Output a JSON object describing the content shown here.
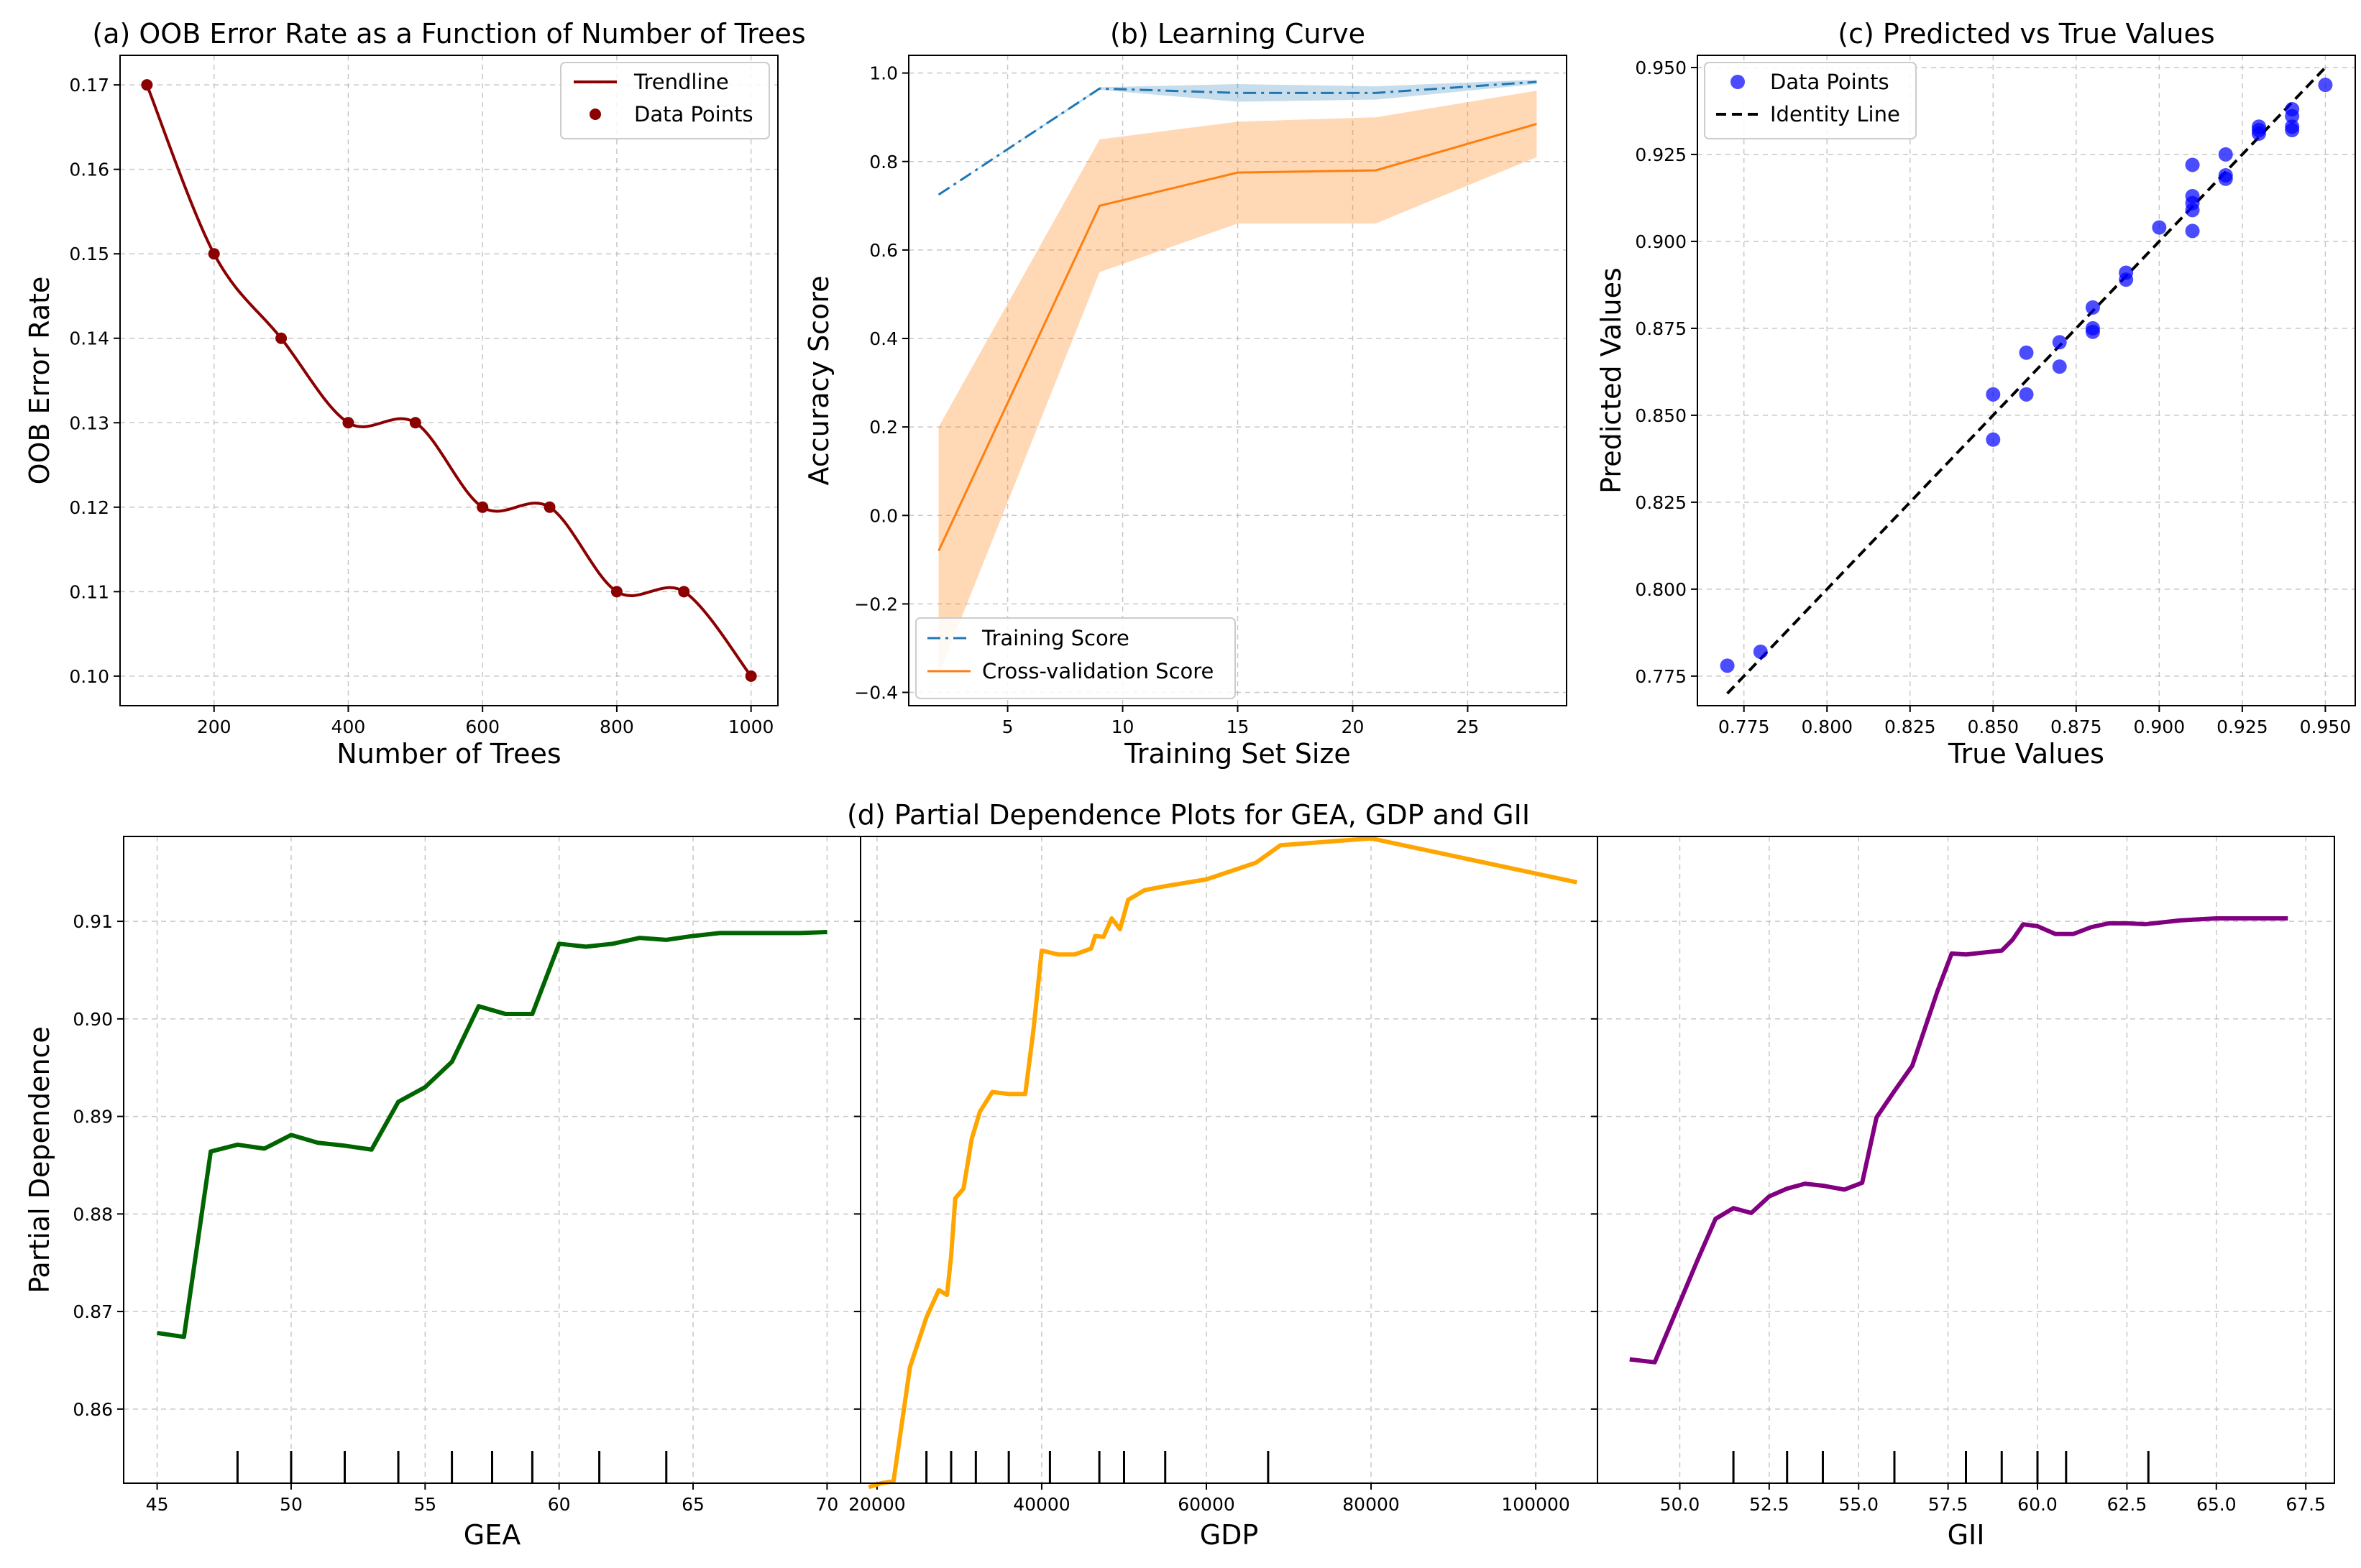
{
  "chart_data": [
    {
      "type": "line",
      "title": "(a) OOB Error Rate as a Function of Number of Trees",
      "xlabel": "Number of Trees",
      "ylabel": "OOB Error Rate",
      "xlim": [
        60,
        1040
      ],
      "ylim": [
        0.0965,
        0.1735
      ],
      "xticks": [
        200,
        400,
        600,
        800,
        1000
      ],
      "xtick_labels": [
        "200",
        "400",
        "600",
        "800",
        "1000"
      ],
      "yticks": [
        0.1,
        0.11,
        0.12,
        0.13,
        0.14,
        0.15,
        0.16,
        0.17
      ],
      "ytick_labels": [
        "0.10",
        "0.11",
        "0.12",
        "0.13",
        "0.14",
        "0.15",
        "0.16",
        "0.17"
      ],
      "grid": true,
      "legend_position": "top-right",
      "colors": {
        "line": "#8b0000",
        "points": "#8b0000"
      },
      "series": [
        {
          "name": "Trendline",
          "style": "smooth-line"
        },
        {
          "name": "Data Points",
          "style": "scatter"
        }
      ],
      "x": [
        100,
        200,
        300,
        400,
        500,
        600,
        700,
        800,
        900,
        1000
      ],
      "values": [
        0.17,
        0.15,
        0.14,
        0.13,
        0.13,
        0.12,
        0.12,
        0.11,
        0.11,
        0.1
      ]
    },
    {
      "type": "line",
      "title": "(b) Learning Curve",
      "xlabel": "Training Set Size",
      "ylabel": "Accuracy Score",
      "xlim": [
        0.7,
        29.3
      ],
      "ylim": [
        -0.43,
        1.04
      ],
      "xticks": [
        5,
        10,
        15,
        20,
        25
      ],
      "xtick_labels": [
        "5",
        "10",
        "15",
        "20",
        "25"
      ],
      "yticks": [
        -0.4,
        -0.2,
        0.0,
        0.2,
        0.4,
        0.6,
        0.8,
        1.0
      ],
      "ytick_labels": [
        "−0.4",
        "−0.2",
        "0.0",
        "0.2",
        "0.4",
        "0.6",
        "0.8",
        "1.0"
      ],
      "grid": true,
      "legend_position": "bottom-left",
      "x": [
        2,
        9,
        15,
        21,
        28
      ],
      "series": [
        {
          "name": "Training Score",
          "color": "#1f77b4",
          "dash": "dash-dot",
          "values": [
            0.725,
            0.965,
            0.955,
            0.955,
            0.98
          ],
          "upper": [
            0.725,
            0.968,
            0.975,
            0.97,
            0.985
          ],
          "lower": [
            0.725,
            0.962,
            0.935,
            0.94,
            0.975
          ]
        },
        {
          "name": "Cross-validation Score",
          "color": "#ff7f0e",
          "dash": "solid",
          "values": [
            -0.08,
            0.7,
            0.775,
            0.78,
            0.885
          ],
          "upper": [
            0.2,
            0.85,
            0.89,
            0.9,
            0.96
          ],
          "lower": [
            -0.36,
            0.55,
            0.66,
            0.66,
            0.81
          ]
        }
      ]
    },
    {
      "type": "scatter",
      "title": "(c) Predicted vs True Values",
      "xlabel": "True Values",
      "ylabel": "Predicted Values",
      "xlim": [
        0.761,
        0.959
      ],
      "ylim": [
        0.7665,
        0.9535
      ],
      "xticks": [
        0.775,
        0.8,
        0.825,
        0.85,
        0.875,
        0.9,
        0.925,
        0.95
      ],
      "xtick_labels": [
        "0.775",
        "0.800",
        "0.825",
        "0.850",
        "0.875",
        "0.900",
        "0.925",
        "0.950"
      ],
      "yticks": [
        0.775,
        0.8,
        0.825,
        0.85,
        0.875,
        0.9,
        0.925,
        0.95
      ],
      "ytick_labels": [
        "0.775",
        "0.800",
        "0.825",
        "0.850",
        "0.875",
        "0.900",
        "0.925",
        "0.950"
      ],
      "grid": true,
      "legend_position": "top-left",
      "series": [
        {
          "name": "Data Points",
          "color": "#0000ff"
        },
        {
          "name": "Identity Line",
          "color": "#000000",
          "dash": "dashed"
        }
      ],
      "points": [
        [
          0.77,
          0.778
        ],
        [
          0.78,
          0.782
        ],
        [
          0.85,
          0.843
        ],
        [
          0.85,
          0.856
        ],
        [
          0.86,
          0.856
        ],
        [
          0.86,
          0.868
        ],
        [
          0.87,
          0.864
        ],
        [
          0.87,
          0.871
        ],
        [
          0.88,
          0.874
        ],
        [
          0.88,
          0.875
        ],
        [
          0.88,
          0.881
        ],
        [
          0.89,
          0.889
        ],
        [
          0.89,
          0.891
        ],
        [
          0.9,
          0.904
        ],
        [
          0.91,
          0.903
        ],
        [
          0.91,
          0.909
        ],
        [
          0.91,
          0.911
        ],
        [
          0.91,
          0.913
        ],
        [
          0.91,
          0.922
        ],
        [
          0.92,
          0.918
        ],
        [
          0.92,
          0.919
        ],
        [
          0.92,
          0.925
        ],
        [
          0.93,
          0.931
        ],
        [
          0.93,
          0.932
        ],
        [
          0.93,
          0.933
        ],
        [
          0.94,
          0.932
        ],
        [
          0.94,
          0.933
        ],
        [
          0.94,
          0.936
        ],
        [
          0.94,
          0.938
        ],
        [
          0.95,
          0.945
        ]
      ],
      "identity": [
        [
          0.77,
          0.77
        ],
        [
          0.95,
          0.95
        ]
      ]
    },
    {
      "type": "line",
      "title": "(d) Partial Dependence Plots for GEA, GDP and GII",
      "ylabel": "Partial Dependence",
      "ylim": [
        0.8524,
        0.9187
      ],
      "yticks": [
        0.86,
        0.87,
        0.88,
        0.89,
        0.9,
        0.91
      ],
      "ytick_labels": [
        "0.86",
        "0.87",
        "0.88",
        "0.89",
        "0.90",
        "0.91"
      ],
      "grid": true,
      "subplots": [
        {
          "xlabel": "GEA",
          "color": "#006400",
          "xlim": [
            43.75,
            71.25
          ],
          "xticks": [
            45,
            50,
            55,
            60,
            65,
            70
          ],
          "xtick_labels": [
            "45",
            "50",
            "55",
            "60",
            "65",
            "70"
          ],
          "x": [
            45,
            46,
            47,
            48,
            49,
            50,
            51,
            52,
            53,
            54,
            55,
            56,
            57,
            58,
            59,
            60,
            61,
            62,
            63,
            64,
            65,
            66,
            67,
            68,
            69,
            70
          ],
          "values": [
            0.8678,
            0.8674,
            0.8864,
            0.8871,
            0.8867,
            0.8881,
            0.8873,
            0.887,
            0.8866,
            0.8915,
            0.893,
            0.8956,
            0.9013,
            0.9005,
            0.9005,
            0.9077,
            0.9074,
            0.9077,
            0.9083,
            0.9081,
            0.9085,
            0.9088,
            0.9088,
            0.9088,
            0.9088,
            0.9089
          ],
          "deciles": [
            48,
            50,
            52,
            54,
            56,
            57.5,
            59,
            61.5,
            64
          ]
        },
        {
          "xlabel": "GDP",
          "color": "#ffa500",
          "xlim": [
            18000,
            107500
          ],
          "xticks": [
            20000,
            40000,
            60000,
            80000,
            100000
          ],
          "xtick_labels": [
            "20000",
            "40000",
            "60000",
            "80000",
            "100000"
          ],
          "x": [
            19000,
            20500,
            22000,
            24000,
            26000,
            27500,
            28500,
            29000,
            29500,
            30500,
            31500,
            32500,
            34000,
            36000,
            38000,
            39000,
            40000,
            42000,
            44000,
            46000,
            46500,
            47500,
            48500,
            49500,
            50500,
            52500,
            55000,
            60000,
            66000,
            69000,
            80000,
            105000
          ],
          "values": [
            0.852,
            0.8524,
            0.8526,
            0.8643,
            0.8694,
            0.8722,
            0.8717,
            0.8757,
            0.8816,
            0.8826,
            0.8877,
            0.8905,
            0.8925,
            0.8923,
            0.8923,
            0.8989,
            0.907,
            0.9066,
            0.9066,
            0.9072,
            0.9085,
            0.9084,
            0.9103,
            0.9092,
            0.9122,
            0.9132,
            0.9136,
            0.9143,
            0.916,
            0.9178,
            0.9185,
            0.914
          ],
          "deciles": [
            26000,
            29000,
            32000,
            36000,
            41000,
            47000,
            50000,
            55000,
            67500
          ]
        },
        {
          "xlabel": "GII",
          "color": "#800080",
          "xlim": [
            47.7,
            68.3
          ],
          "xticks": [
            50.0,
            52.5,
            55.0,
            57.5,
            60.0,
            62.5,
            65.0,
            67.5
          ],
          "xtick_labels": [
            "50.0",
            "52.5",
            "55.0",
            "57.5",
            "60.0",
            "62.5",
            "65.0",
            "67.5"
          ],
          "x": [
            48.6,
            49.3,
            50.5,
            51.0,
            51.5,
            52.0,
            52.5,
            53.0,
            53.5,
            54.0,
            54.6,
            55.1,
            55.5,
            56.0,
            56.5,
            57.2,
            57.6,
            58.0,
            59.0,
            59.3,
            59.6,
            60.0,
            60.5,
            61.0,
            61.5,
            62.0,
            62.5,
            63.0,
            64.0,
            65.0,
            66.0,
            67.0
          ],
          "values": [
            0.8651,
            0.8648,
            0.8753,
            0.8795,
            0.8806,
            0.8801,
            0.8818,
            0.8826,
            0.8831,
            0.8829,
            0.8825,
            0.8832,
            0.8899,
            0.8926,
            0.8952,
            0.9028,
            0.9067,
            0.9066,
            0.907,
            0.9081,
            0.9097,
            0.9095,
            0.9087,
            0.9087,
            0.9094,
            0.9098,
            0.9098,
            0.9097,
            0.9101,
            0.9103,
            0.9103,
            0.9103
          ],
          "deciles": [
            51.5,
            53,
            54,
            56,
            58,
            59,
            60,
            60.8,
            63.1
          ]
        }
      ]
    }
  ]
}
